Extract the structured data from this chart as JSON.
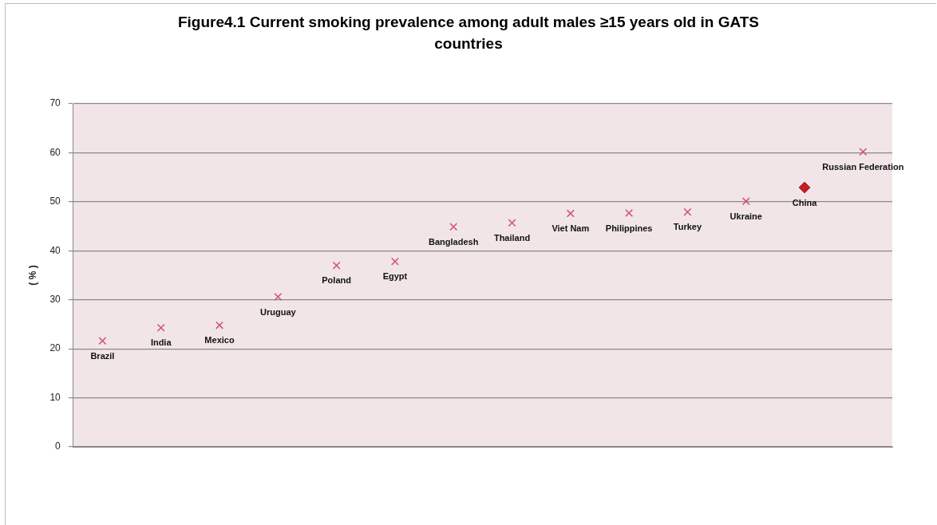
{
  "chart_data": {
    "type": "scatter",
    "title": "Figure4.1 Current smoking prevalence among adult males ≥15 years old in GATS countries",
    "ylabel": "( % )",
    "categories": [
      "Brazil",
      "India",
      "Mexico",
      "Uruguay",
      "Poland",
      "Egypt",
      "Bangladesh",
      "Thailand",
      "Viet Nam",
      "Philippines",
      "Turkey",
      "Ukraine",
      "China",
      "Russian Federation"
    ],
    "series": [
      {
        "color": "#d0506a",
        "marker": "cross",
        "values": [
          21.6,
          24.3,
          24.8,
          30.6,
          37.0,
          37.8,
          44.9,
          45.7,
          47.6,
          47.7,
          47.9,
          50.1,
          null,
          60.2
        ]
      },
      {
        "color": "#c0202a",
        "marker": "diamond",
        "values": [
          null,
          null,
          null,
          null,
          null,
          null,
          null,
          null,
          null,
          null,
          null,
          null,
          52.9,
          null
        ]
      }
    ],
    "ylim": [
      0,
      70
    ],
    "yticks": [
      0,
      10,
      20,
      30,
      40,
      50,
      60,
      70
    ],
    "grid": "y",
    "tick_labels": "y"
  }
}
